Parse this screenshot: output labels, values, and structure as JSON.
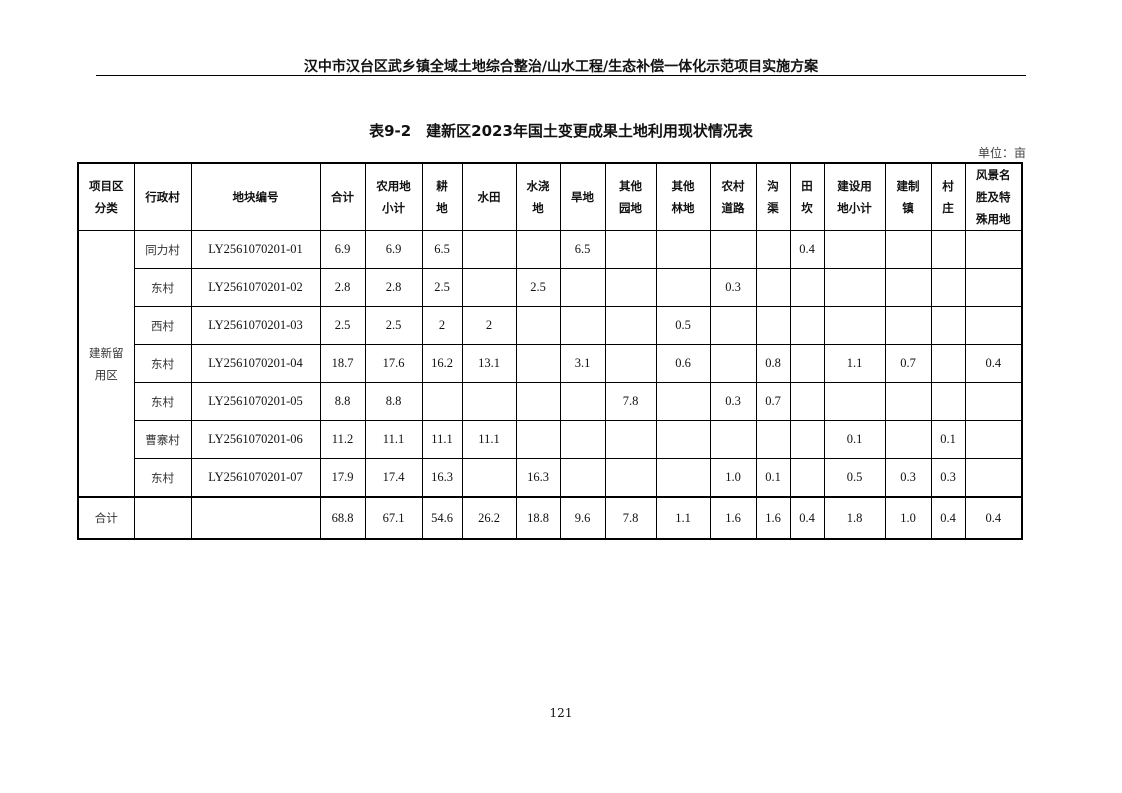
{
  "running_header": "汉中市汉台区武乡镇全域土地综合整治/山水工程/生态补偿一体化示范项目实施方案",
  "table_title": "表9-2　建新区2023年国土变更成果土地利用现状情况表",
  "unit": "单位：亩",
  "columns": [
    [
      "项目区",
      "分类"
    ],
    [
      "行政村"
    ],
    [
      "地块编号"
    ],
    [
      "合计"
    ],
    [
      "农用地",
      "小计"
    ],
    [
      "耕",
      "地"
    ],
    [
      "水田"
    ],
    [
      "水浇",
      "地"
    ],
    [
      "旱地"
    ],
    [
      "其他",
      "园地"
    ],
    [
      "其他",
      "林地"
    ],
    [
      "农村",
      "道路"
    ],
    [
      "沟",
      "渠"
    ],
    [
      "田",
      "坎"
    ],
    [
      "建设用",
      "地小计"
    ],
    [
      "建制",
      "镇"
    ],
    [
      "村",
      "庄"
    ],
    [
      "风景名",
      "胜及特",
      "殊用地"
    ]
  ],
  "category": "建新留用区",
  "rows": [
    [
      "同力村",
      "LY2561070201-01",
      "6.9",
      "6.9",
      "6.5",
      "",
      "",
      "6.5",
      "",
      "",
      "",
      "",
      "0.4",
      "",
      "",
      "",
      ""
    ],
    [
      "东村",
      "LY2561070201-02",
      "2.8",
      "2.8",
      "2.5",
      "",
      "2.5",
      "",
      "",
      "",
      "0.3",
      "",
      "",
      "",
      "",
      "",
      ""
    ],
    [
      "西村",
      "LY2561070201-03",
      "2.5",
      "2.5",
      "2",
      "2",
      "",
      "",
      "",
      "0.5",
      "",
      "",
      "",
      "",
      "",
      "",
      ""
    ],
    [
      "东村",
      "LY2561070201-04",
      "18.7",
      "17.6",
      "16.2",
      "13.1",
      "",
      "3.1",
      "",
      "0.6",
      "",
      "0.8",
      "",
      "1.1",
      "0.7",
      "",
      "0.4"
    ],
    [
      "东村",
      "LY2561070201-05",
      "8.8",
      "8.8",
      "",
      "",
      "",
      "",
      "7.8",
      "",
      "0.3",
      "0.7",
      "",
      "",
      "",
      "",
      ""
    ],
    [
      "曹寨村",
      "LY2561070201-06",
      "11.2",
      "11.1",
      "11.1",
      "11.1",
      "",
      "",
      "",
      "",
      "",
      "",
      "",
      "0.1",
      "",
      "0.1",
      ""
    ],
    [
      "东村",
      "LY2561070201-07",
      "17.9",
      "17.4",
      "16.3",
      "",
      "16.3",
      "",
      "",
      "",
      "1.0",
      "0.1",
      "",
      "0.5",
      "0.3",
      "0.3",
      ""
    ]
  ],
  "total": {
    "label": "合计",
    "values": [
      "68.8",
      "67.1",
      "54.6",
      "26.2",
      "18.8",
      "9.6",
      "7.8",
      "1.1",
      "1.6",
      "1.6",
      "0.4",
      "1.8",
      "1.0",
      "0.4",
      "0.4"
    ]
  },
  "page_number": "121"
}
